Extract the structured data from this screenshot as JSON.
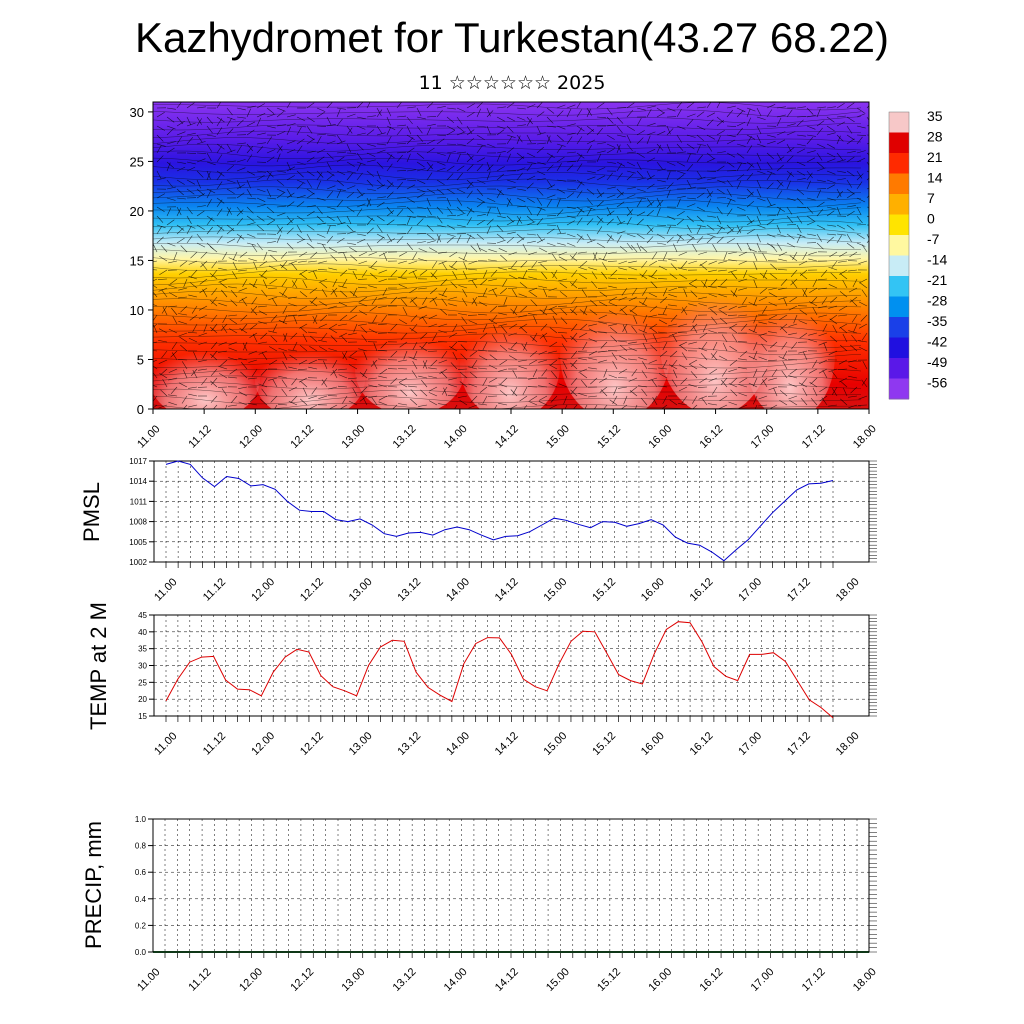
{
  "title": "Kazhydromet for Turkestan(43.27 68.22)",
  "subtitle": "11 ☆☆☆☆☆☆ 2025",
  "chart_data": [
    {
      "type": "heatmap",
      "name": "cross-section",
      "x_ticks": [
        "11.00",
        "11.12",
        "12.00",
        "12.12",
        "13.00",
        "13.12",
        "14.00",
        "14.12",
        "15.00",
        "15.12",
        "16.00",
        "16.12",
        "17.00",
        "17.12",
        "18.00"
      ],
      "y_ticks": [
        "0",
        "5",
        "10",
        "15",
        "20",
        "25",
        "30"
      ],
      "ylim": [
        0,
        31
      ],
      "colorbar_labels": [
        "35",
        "28",
        "21",
        "14",
        "7",
        "0",
        "-7",
        "-14",
        "-21",
        "-28",
        "-35",
        "-42",
        "-49",
        "-56"
      ],
      "colors": [
        "#f7c8c8",
        "#e00000",
        "#ff2a00",
        "#ff7a00",
        "#ffb000",
        "#ffe400",
        "#fff8a0",
        "#c8ecf6",
        "#33c4f4",
        "#0090f0",
        "#1a40e8",
        "#2010e0",
        "#5a18e8",
        "#8f38f0"
      ]
    },
    {
      "type": "line",
      "name": "PMSL",
      "ylabel": "PMSL",
      "x_ticks": [
        "11.00",
        "11.12",
        "12.00",
        "12.12",
        "13.00",
        "13.12",
        "14.00",
        "14.12",
        "15.00",
        "15.12",
        "16.00",
        "16.12",
        "17.00",
        "17.12",
        "18.00"
      ],
      "y_ticks": [
        "1002",
        "1005",
        "1008",
        "1011",
        "1014",
        "1017"
      ],
      "ylim": [
        1002,
        1017
      ],
      "color": "#0000cc",
      "values": [
        1016.5,
        1017,
        1016.5,
        1014.5,
        1013.2,
        1014.7,
        1014.4,
        1013.3,
        1013.5,
        1012.8,
        1011,
        1009.7,
        1009.5,
        1009.5,
        1008.3,
        1008,
        1008.4,
        1007.5,
        1006.2,
        1005.8,
        1006.3,
        1006.4,
        1006,
        1006.8,
        1007.2,
        1006.8,
        1006,
        1005.3,
        1005.8,
        1005.9,
        1006.5,
        1007.5,
        1008.5,
        1008.2,
        1007.6,
        1007.1,
        1008,
        1007.9,
        1007.3,
        1007.7,
        1008.3,
        1007.5,
        1005.7,
        1004.8,
        1004.5,
        1003.5,
        1002.2,
        1003.8,
        1005.3,
        1007.3,
        1009.3,
        1011,
        1012.7,
        1013.6,
        1013.7,
        1014.1
      ]
    },
    {
      "type": "line",
      "name": "TEMP at 2 M",
      "ylabel": "TEMP at 2 M",
      "x_ticks": [
        "11.00",
        "11.12",
        "12.00",
        "12.12",
        "13.00",
        "13.12",
        "14.00",
        "14.12",
        "15.00",
        "15.12",
        "16.00",
        "16.12",
        "17.00",
        "17.12",
        "18.00"
      ],
      "y_ticks": [
        "15",
        "20",
        "25",
        "30",
        "35",
        "40",
        "45"
      ],
      "ylim": [
        15,
        45
      ],
      "color": "#dd0000",
      "values": [
        19.5,
        26,
        31,
        32.5,
        32.7,
        25.7,
        23,
        22.8,
        21,
        28,
        32.5,
        34.8,
        34,
        27,
        23.7,
        22.5,
        21,
        30,
        35.5,
        37.5,
        37.2,
        28,
        23.5,
        21.2,
        19.3,
        30.5,
        36.5,
        38.3,
        38.2,
        33.3,
        26,
        23.7,
        22.5,
        30.5,
        37.2,
        40.2,
        40,
        33.7,
        27.3,
        25.5,
        24.5,
        33.5,
        40.7,
        43,
        42.7,
        37,
        29.7,
        26.8,
        25.5,
        33.3,
        33.3,
        33.8,
        31.2,
        25.5,
        19.8,
        17.5,
        14.5
      ]
    },
    {
      "type": "bar",
      "name": "PRECIP",
      "ylabel": "PRECIP, mm",
      "x_ticks": [
        "11.00",
        "11.12",
        "12.00",
        "12.12",
        "13.00",
        "13.12",
        "14.00",
        "14.12",
        "15.00",
        "15.12",
        "16.00",
        "16.12",
        "17.00",
        "17.12",
        "18.00"
      ],
      "y_ticks": [
        "0.0",
        "0.2",
        "0.4",
        "0.6",
        "0.8",
        "1.0"
      ],
      "ylim": [
        0,
        1
      ],
      "values": [
        0,
        0,
        0,
        0,
        0,
        0,
        0,
        0,
        0,
        0,
        0,
        0,
        0,
        0,
        0,
        0,
        0,
        0,
        0,
        0,
        0,
        0,
        0,
        0,
        0,
        0,
        0,
        0,
        0,
        0,
        0,
        0,
        0,
        0,
        0,
        0,
        0,
        0,
        0,
        0,
        0,
        0,
        0,
        0,
        0,
        0,
        0,
        0,
        0,
        0,
        0,
        0,
        0,
        0,
        0,
        0,
        0
      ]
    }
  ]
}
